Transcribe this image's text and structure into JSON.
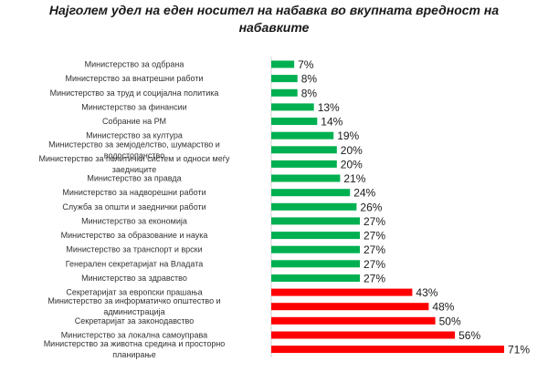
{
  "chart_data": {
    "type": "bar",
    "orientation": "horizontal",
    "title": "Најголем удел на еден носител на набавка во вкупната вредност на набавките",
    "xlabel": "",
    "ylabel": "",
    "xlim": [
      0,
      71
    ],
    "grid": false,
    "legend": "none",
    "value_suffix": "%",
    "colors": {
      "normal": "#00b050",
      "highlight": "#ff0000"
    },
    "categories": [
      {
        "label": "Министерство за одбрана",
        "value": 7,
        "highlight": false
      },
      {
        "label": "Министерство за внатрешни работи",
        "value": 8,
        "highlight": false
      },
      {
        "label": "Министерство за труд и социјална политика",
        "value": 8,
        "highlight": false
      },
      {
        "label": "Министерство за финансии",
        "value": 13,
        "highlight": false
      },
      {
        "label": "Собрание на РМ",
        "value": 14,
        "highlight": false
      },
      {
        "label": "Министерство за култура",
        "value": 19,
        "highlight": false
      },
      {
        "label": "Министерство за земјоделство, шумарство и водостопанство",
        "value": 20,
        "highlight": false
      },
      {
        "label": "Министерство за политички систем и односи меѓу заедниците",
        "value": 20,
        "highlight": false
      },
      {
        "label": "Министерство за правда",
        "value": 21,
        "highlight": false
      },
      {
        "label": "Министерство за надворешни работи",
        "value": 24,
        "highlight": false
      },
      {
        "label": "Служба за општи и заеднички работи",
        "value": 26,
        "highlight": false
      },
      {
        "label": "Министерство за економија",
        "value": 27,
        "highlight": false
      },
      {
        "label": "Министерство за образование и наука",
        "value": 27,
        "highlight": false
      },
      {
        "label": "Министерство за транспорт и врски",
        "value": 27,
        "highlight": false
      },
      {
        "label": "Генерален секретаријат на Владата",
        "value": 27,
        "highlight": false
      },
      {
        "label": "Министерство за здравство",
        "value": 27,
        "highlight": false
      },
      {
        "label": "Секретаријат за европски прашања",
        "value": 43,
        "highlight": true
      },
      {
        "label": "Министерство за информатичко општество и администрација",
        "value": 48,
        "highlight": true
      },
      {
        "label": "Секретаријат за законодавство",
        "value": 50,
        "highlight": true
      },
      {
        "label": "Министерство за локална самоуправа",
        "value": 56,
        "highlight": true
      },
      {
        "label": "Министерство за животна средина и просторно планирање",
        "value": 71,
        "highlight": true
      }
    ]
  }
}
